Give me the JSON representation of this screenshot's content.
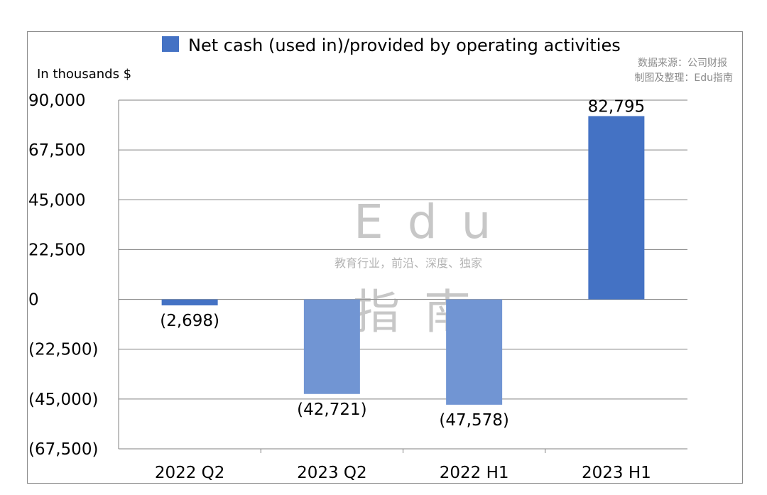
{
  "source_note": [
    "数据来源：公司财报",
    "制图及整理：Edu指南"
  ],
  "watermark": {
    "line1": "Edu",
    "line2": "教育行业，前沿、深度、独家",
    "line3": "指南"
  },
  "chart_data": {
    "type": "bar",
    "unit_label": "In thousands $",
    "categories": [
      "2022 Q2",
      "2023 Q2",
      "2022 H1",
      "2023 H1"
    ],
    "series": [
      {
        "name": "Net cash (used in)/provided by operating activities",
        "values": [
          -2698,
          -42721,
          -47578,
          82795
        ],
        "labels": [
          "(2,698)",
          "(42,721)",
          "(47,578)",
          "82,795"
        ]
      }
    ],
    "ylim": [
      -67500,
      90000
    ],
    "yticks": [
      90000,
      67500,
      45000,
      22500,
      0,
      -22500,
      -45000,
      -67500
    ],
    "ytick_labels": [
      "90,000",
      "67,500",
      "45,000",
      "22,500",
      "0",
      "(22,500)",
      "(45,000)",
      "(67,500)"
    ],
    "legend_position": "top-center",
    "grid": true,
    "colors": {
      "bar": "#4472c4",
      "bar_light": "#7195d3",
      "grid": "#808080",
      "axis": "#808080"
    }
  }
}
